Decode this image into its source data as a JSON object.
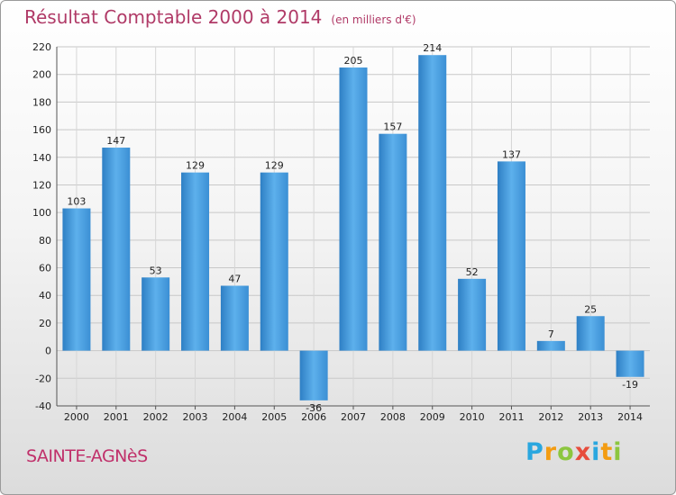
{
  "title": "Résultat Comptable 2000 à 2014",
  "subtitle": "(en milliers d'€)",
  "commune": "SAINTE-AGNèS",
  "brand": {
    "letters": [
      "P",
      "r",
      "o",
      "x",
      "i",
      "t",
      "i"
    ],
    "colors": [
      "#2aa7df",
      "#f39c12",
      "#8cc63f",
      "#e74c3c",
      "#2aa7df",
      "#f39c12",
      "#8cc63f"
    ]
  },
  "chart_data": {
    "type": "bar",
    "title": "Résultat Comptable 2000 à 2014",
    "xlabel": "",
    "ylabel": "",
    "categories": [
      "2000",
      "2001",
      "2002",
      "2003",
      "2004",
      "2005",
      "2006",
      "2007",
      "2008",
      "2009",
      "2010",
      "2011",
      "2012",
      "2013",
      "2014"
    ],
    "values": [
      103,
      147,
      53,
      129,
      47,
      129,
      -36,
      205,
      157,
      214,
      52,
      137,
      7,
      25,
      -19
    ],
    "value_labels": [
      "103",
      "147",
      "53",
      "129",
      "47",
      "129",
      "-36",
      "205",
      "157",
      "214",
      "52",
      "137",
      "7",
      "25",
      "-19"
    ],
    "ylim": [
      -40,
      220
    ],
    "yticks": [
      -40,
      -20,
      0,
      20,
      40,
      60,
      80,
      100,
      120,
      140,
      160,
      180,
      200,
      220
    ],
    "grid": true,
    "bar_color": "#4a9fe0"
  }
}
